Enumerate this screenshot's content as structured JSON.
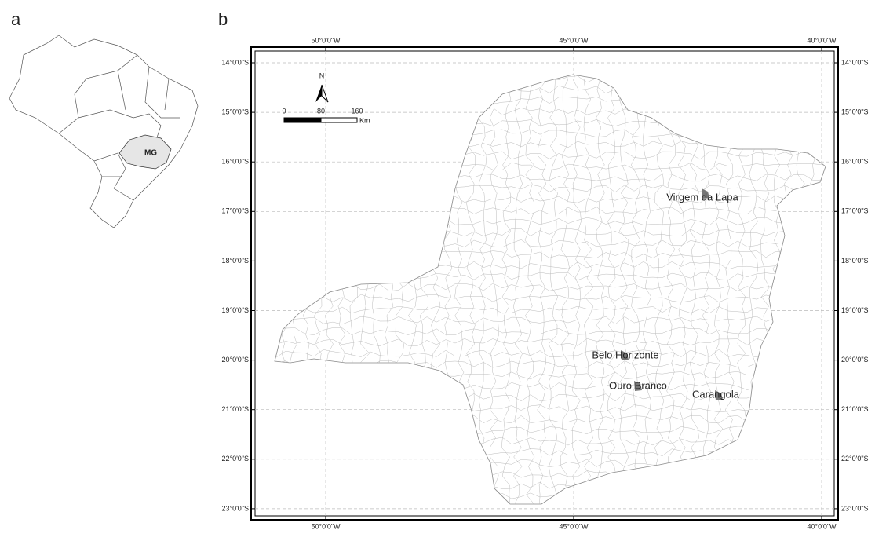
{
  "panel_a": {
    "label": "a",
    "state_label": "MG"
  },
  "panel_b": {
    "label": "b",
    "lon_labels": [
      "50°0'0\"W",
      "45°0'0\"W",
      "40°0'0\"W"
    ],
    "lat_labels": [
      "14°0'0\"S",
      "15°0'0\"S",
      "16°0'0\"S",
      "17°0'0\"S",
      "18°0'0\"S",
      "19°0'0\"S",
      "20°0'0\"S",
      "21°0'0\"S",
      "22°0'0\"S",
      "23°0'0\"S"
    ],
    "north": "N",
    "scale": {
      "ticks": [
        "0",
        "80",
        "160"
      ],
      "unit": "Km"
    },
    "places": [
      "Virgem da Lapa",
      "Belo Horizonte",
      "Ouro Branco",
      "Carangola"
    ]
  }
}
